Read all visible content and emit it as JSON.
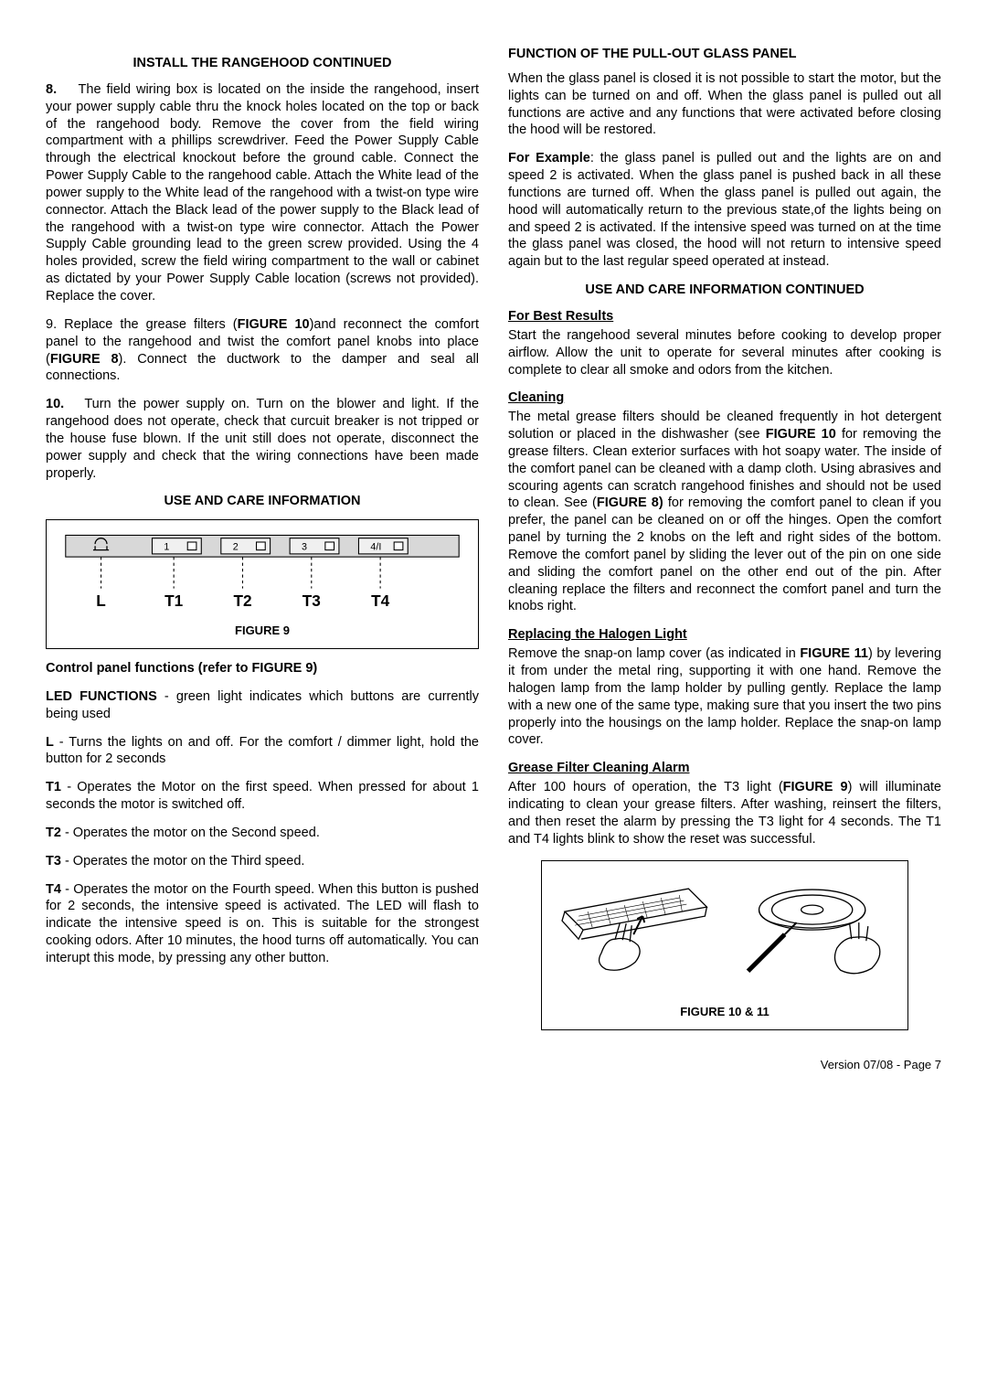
{
  "col1": {
    "h1": "INSTALL  THE  RANGEHOOD CONTINUED",
    "p8_label": "8.",
    "p8": "The field wiring box is located on the inside the rangehood, insert your power supply cable thru the knock holes located on the top or back of the rangehood body. Remove the cover from the field wiring compartment with a phillips screwdriver. Feed the Power Supply Cable through the electrical knockout before the ground cable. Connect the Power Supply Cable to the rangehood cable.  Attach the White lead of the power supply to the White lead of the rangehood with a twist-on type wire connector.  Attach the Black lead of the power supply to the Black lead of the rangehood with a twist-on type wire connector.  Attach the Power Supply Cable grounding lead to the green screw provided.  Using the 4 holes provided, screw the field wiring compartment to the wall or cabinet as dictated by your Power Supply Cable location (screws not provided).  Replace the cover.",
    "p9_a": "9.      Replace the grease filters (",
    "p9_b": "FIGURE 10",
    "p9_c": ")and reconnect the comfort panel to the rangehood and twist the comfort panel knobs into place (",
    "p9_d": "FIGURE 8",
    "p9_e": ").  Connect  the ductwork to the damper and seal all connections.",
    "p10_label": "10.",
    "p10": "Turn the power supply on.  Turn on the blower and light.  If the rangehood does not operate, check that curcuit breaker is not tripped or the house fuse blown.  If the unit still does not operate, disconnect the power supply and check that the wiring connections have been made properly.",
    "h2": "USE  AND  CARE  INFORMATION",
    "fig9_caption": "FIGURE 9",
    "fig9": {
      "labels": [
        "L",
        "T1",
        "T2",
        "T3",
        "T4"
      ],
      "btn_labels": [
        "",
        "1",
        "2",
        "3",
        "4/I"
      ]
    },
    "cp_heading": "Control panel functions (refer to FIGURE 9)",
    "led_a": "LED FUNCTIONS",
    "led_b": " - green light indicates which buttons are currently being used",
    "l_a": "L",
    "l_b": " - Turns the lights on and off. For the comfort / dimmer light, hold the button for 2 seconds",
    "t1_a": "T1",
    "t1_b": " -  Operates the Motor on the first speed. When pressed for about 1 seconds the motor is switched off.",
    "t2_a": "T2",
    "t2_b": " - Operates the motor on the Second speed.",
    "t3_a": "T3",
    "t3_b": " - Operates the motor on the Third speed.",
    "t4_a": "T4",
    "t4_b": " - Operates the motor on the Fourth speed. When this button is pushed for 2 seconds, the intensive speed is activated. The LED will flash to indicate the intensive speed is on. This is suitable for the strongest cooking odors. After 10 minutes, the hood turns off automatically. You can interupt this mode, by pressing any other button."
  },
  "col2": {
    "h1": "FUNCTION OF THE PULL-OUT GLASS PANEL",
    "p1": "When the glass panel is closed it is not possible to start the motor, but the lights can be turned on and off. When the glass panel is pulled out all functions are active and any functions that were activated before closing the hood will be restored.",
    "ex_a": "For Example",
    "ex_b": ": the glass panel is pulled out and the lights are on and speed 2 is activated. When the glass panel is pushed back in all these functions are turned off. When the glass panel is pulled out again, the hood will automatically return to the previous state,of the lights being on and speed 2 is activated. If the intensive speed was turned on at the time the glass panel was closed, the hood will not return to intensive speed again but to the last regular speed operated at instead.",
    "h2": "USE  AND  CARE  INFORMATION CONTINUED",
    "best_h": "For Best Results",
    "best_p": "Start the rangehood several minutes before cooking to develop proper airflow.  Allow the unit to operate for several minutes after cooking is complete to clear all smoke and odors from the kitchen.",
    "clean_h": "Cleaning",
    "clean_a": "The metal grease filters should be cleaned frequently in hot detergent solution or placed in the dishwasher (see ",
    "clean_b": "FIGURE 10",
    "clean_c": " for removing the grease filters. Clean exterior surfaces with hot soapy water. The inside of the comfort panel can be cleaned with a damp cloth. Using abrasives and scouring agents can scratch rangehood finishes and should not be used to clean. See (",
    "clean_d": "FIGURE 8)",
    "clean_e": " for removing the comfort panel to clean if you prefer, the panel can be cleaned on or off the hinges. Open the comfort panel by turning the 2 knobs on the left and right sides of the bottom. Remove the comfort panel by sliding the lever out of the pin on one side and sliding the comfort panel on the other end out of the pin. After cleaning replace the filters and reconnect the comfort panel and turn the knobs right.",
    "halo_h": "Replacing the Halogen Light",
    "halo_a": "Remove the snap-on lamp cover (as indicated in ",
    "halo_b": "FIGURE 11",
    "halo_c": ") by levering it from under the metal ring, supporting it with one hand.  Remove the halogen lamp from the lamp holder by pulling gently.  Replace the lamp with a new one of the same type, making sure that you insert the two pins properly into the housings on the lamp holder. Replace the snap-on lamp cover.",
    "grease_h": "Grease Filter Cleaning Alarm",
    "grease_a": "After 100 hours of operation, the T3 light (",
    "grease_b": "FIGURE 9",
    "grease_c": ") will illuminate indicating to clean your grease filters. After washing, reinsert the filters, and then reset the alarm by pressing the T3 light for 4 seconds. The T1 and T4 lights blink to show the reset was successful.",
    "fig1011_caption": "FIGURE 10 & 11"
  },
  "footer": "Version 07/08 - Page 7"
}
